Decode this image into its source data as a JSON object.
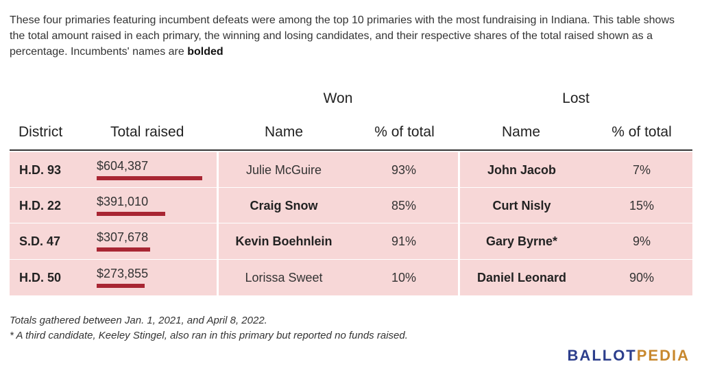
{
  "intro": {
    "text_before": "These four primaries featuring incumbent defeats were among the top 10 primaries with the most fundraising in Indiana. This table shows the total amount raised in each primary, the winning and losing candidates, and their respective shares of the total raised shown as a percentage. Incumbents' names are ",
    "text_bold": "bolded"
  },
  "chart_data": {
    "type": "table",
    "group_headers": {
      "won": "Won",
      "lost": "Lost"
    },
    "columns": [
      "District",
      "Total raised",
      "Name",
      "% of total",
      "Name",
      "% of total"
    ],
    "max_raised": 604387,
    "rows": [
      {
        "district": "H.D. 93",
        "raised_label": "$604,387",
        "raised": 604387,
        "won_name": "Julie McGuire",
        "won_incumbent": false,
        "won_pct": "93%",
        "lost_name": "John Jacob",
        "lost_incumbent": true,
        "lost_pct": "7%"
      },
      {
        "district": "H.D. 22",
        "raised_label": "$391,010",
        "raised": 391010,
        "won_name": "Craig Snow",
        "won_incumbent": true,
        "won_pct": "85%",
        "lost_name": "Curt Nisly",
        "lost_incumbent": true,
        "lost_pct": "15%"
      },
      {
        "district": "S.D. 47",
        "raised_label": "$307,678",
        "raised": 307678,
        "won_name": "Kevin Boehnlein",
        "won_incumbent": true,
        "won_pct": "91%",
        "lost_name": "Gary Byrne*",
        "lost_incumbent": true,
        "lost_pct": "9%"
      },
      {
        "district": "H.D. 50",
        "raised_label": "$273,855",
        "raised": 273855,
        "won_name": "Lorissa Sweet",
        "won_incumbent": false,
        "won_pct": "10%",
        "lost_name": "Daniel Leonard",
        "lost_incumbent": true,
        "lost_pct": "90%"
      }
    ]
  },
  "notes": [
    "Totals gathered between Jan. 1, 2021, and April 8, 2022.",
    "* A third candidate, Keeley Stingel, also ran in this primary but reported no funds raised."
  ],
  "logo": {
    "part1": "BALLOT",
    "part2": "PEDIA"
  },
  "colors": {
    "bar": "#a82633",
    "row_bg": "#f7d7d7",
    "logo_blue": "#2c3e8c",
    "logo_gold": "#c8882e"
  }
}
